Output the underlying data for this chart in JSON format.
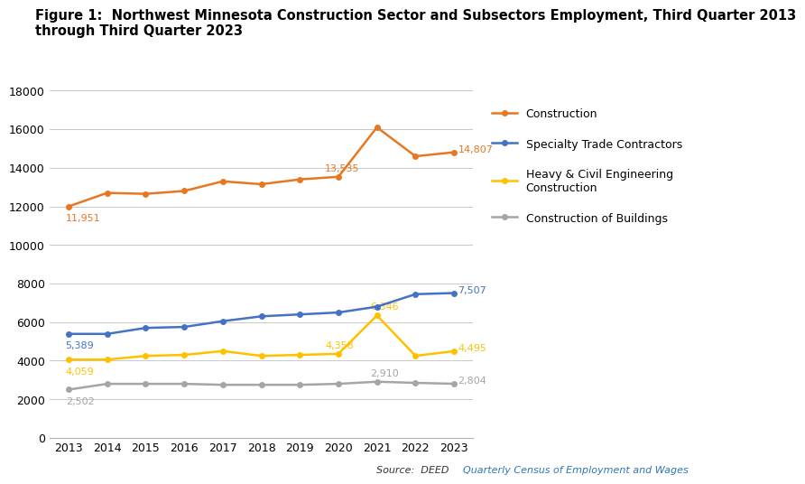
{
  "title_line1": "Figure 1:  Northwest Minnesota Construction Sector and Subsectors Employment, Third Quarter 2013",
  "title_line2": "through Third Quarter 2023",
  "years": [
    2013,
    2014,
    2015,
    2016,
    2017,
    2018,
    2019,
    2020,
    2021,
    2022,
    2023
  ],
  "construction": [
    12000,
    12700,
    12650,
    12800,
    13300,
    13150,
    13400,
    13535,
    16100,
    14600,
    14807
  ],
  "specialty_trade": [
    5390,
    5389,
    5700,
    5750,
    6050,
    6300,
    6400,
    6500,
    6800,
    7450,
    7507
  ],
  "heavy_civil": [
    4060,
    4059,
    4250,
    4300,
    4500,
    4250,
    4300,
    4358,
    6346,
    4250,
    4495
  ],
  "buildings": [
    2502,
    2800,
    2800,
    2800,
    2750,
    2750,
    2750,
    2800,
    2910,
    2850,
    2804
  ],
  "construction_color": "#E87722",
  "specialty_color": "#4472C4",
  "heavy_color": "#FFC000",
  "buildings_color": "#A5A5A5",
  "construction_label": "Construction",
  "specialty_label": "Specialty Trade Contractors",
  "heavy_label": "Heavy & Civil Engineering\nConstruction",
  "buildings_label": "Construction of Buildings",
  "ylim": [
    0,
    18000
  ],
  "yticks": [
    0,
    2000,
    4000,
    6000,
    8000,
    10000,
    12000,
    14000,
    16000,
    18000
  ],
  "source_plain": "Source:  DEED ",
  "source_link": "Quarterly Census of Employment and Wages",
  "figure_bg": "#FFFFFF",
  "axes_bg": "#FFFFFF",
  "ann_fontsize": 8.0,
  "title_fontsize": 10.5
}
